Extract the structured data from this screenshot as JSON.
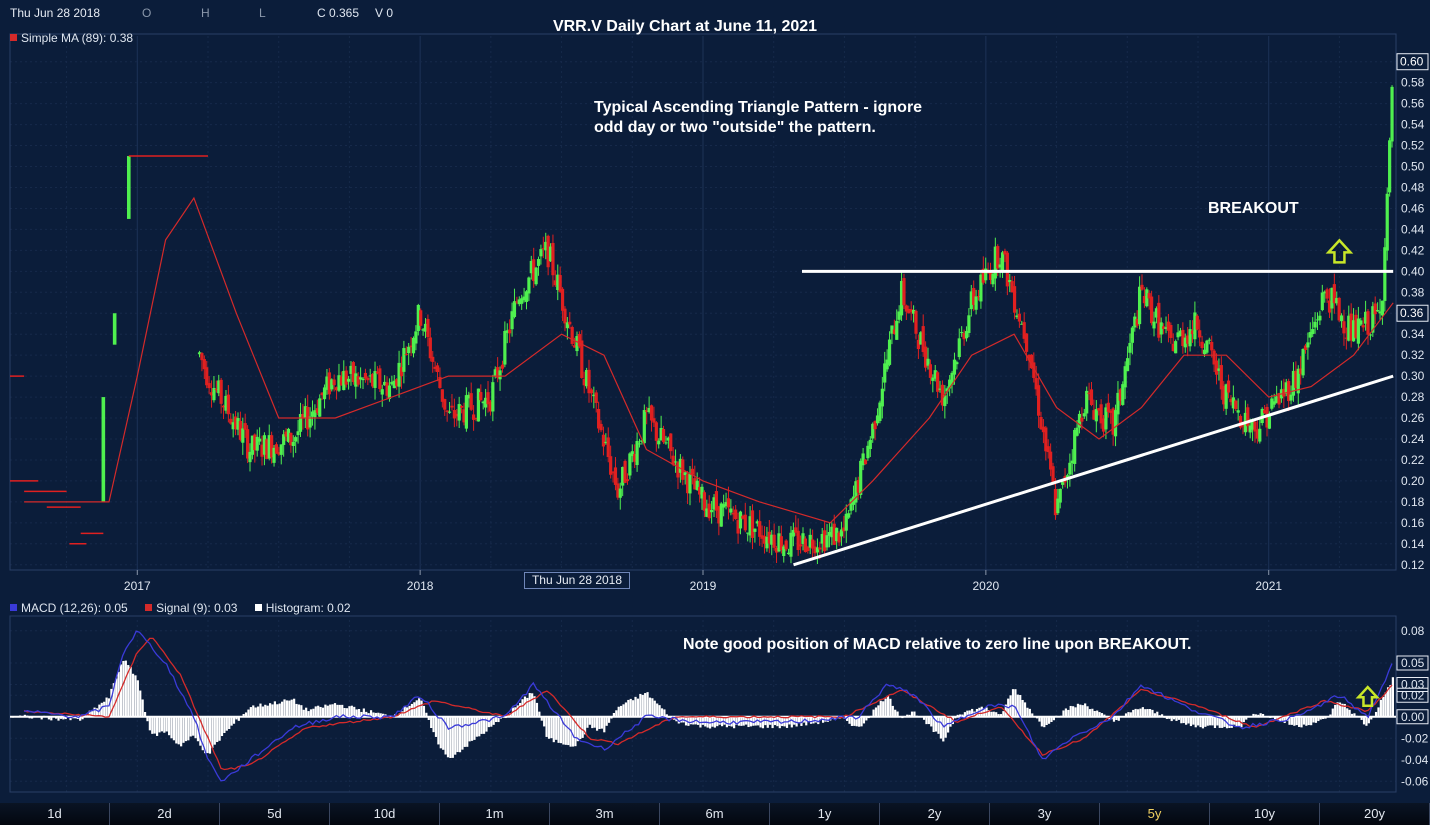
{
  "header": {
    "date": "Thu Jun 28 2018",
    "o_label": "O",
    "h_label": "H",
    "l_label": "L",
    "c_label": "C 0.365",
    "v_label": "V 0",
    "ma_legend": "Simple MA (89): 0.38",
    "ma_color": "#d42a2a"
  },
  "annotations": {
    "title": "VRR.V Daily Chart at June 11, 2021",
    "pattern_note": "Typical Ascending Triangle Pattern - ignore odd day or two \"outside\" the pattern.",
    "breakout_label": "BREAKOUT",
    "macd_note": "Note good position of MACD relative to zero line upon BREAKOUT.",
    "crosshair_date": "Thu Jun 28 2018"
  },
  "macd_legend": {
    "macd": "MACD (12,26): 0.05",
    "signal": "Signal (9): 0.03",
    "histogram": "Histogram: 0.02",
    "macd_color": "#3a3ad8",
    "signal_color": "#d42a2a",
    "histogram_color": "#ffffff"
  },
  "range_buttons": [
    {
      "label": "1d"
    },
    {
      "label": "2d"
    },
    {
      "label": "5d"
    },
    {
      "label": "10d"
    },
    {
      "label": "1m"
    },
    {
      "label": "3m"
    },
    {
      "label": "6m"
    },
    {
      "label": "1y"
    },
    {
      "label": "2y"
    },
    {
      "label": "3y"
    },
    {
      "label": "5y",
      "active": true
    },
    {
      "label": "10y"
    },
    {
      "label": "20y"
    }
  ],
  "chart_data": [
    {
      "type": "candlestick",
      "title": "VRR.V Daily Chart at June 11, 2021",
      "x_ticks": [
        "2017",
        "2018",
        "2019",
        "2020",
        "2021"
      ],
      "y_ticks": [
        "0.12",
        "0.14",
        "0.16",
        "0.18",
        "0.20",
        "0.22",
        "0.24",
        "0.26",
        "0.28",
        "0.30",
        "0.32",
        "0.34",
        "0.36",
        "0.38",
        "0.40",
        "0.42",
        "0.44",
        "0.46",
        "0.48",
        "0.50",
        "0.52",
        "0.54",
        "0.56",
        "0.58",
        "0.60"
      ],
      "ylim": [
        0.115,
        0.615
      ],
      "last_price_label": "0.60",
      "cursor_price_label": "0.36",
      "up_color": "#4ff04f",
      "down_color": "#e02020",
      "series": [
        {
          "name": "Simple MA (89)",
          "color": "#d42a2a"
        }
      ],
      "approx_close_path": [
        {
          "x": 2016.6,
          "y": 0.19
        },
        {
          "x": 2016.85,
          "y": 0.18
        },
        {
          "x": 2016.92,
          "y": 0.36
        },
        {
          "x": 2016.95,
          "y": 0.51
        },
        {
          "x": 2017.25,
          "y": 0.3
        },
        {
          "x": 2017.4,
          "y": 0.23
        },
        {
          "x": 2017.55,
          "y": 0.24
        },
        {
          "x": 2017.7,
          "y": 0.3
        },
        {
          "x": 2017.9,
          "y": 0.29
        },
        {
          "x": 2018.0,
          "y": 0.36
        },
        {
          "x": 2018.1,
          "y": 0.26
        },
        {
          "x": 2018.25,
          "y": 0.28
        },
        {
          "x": 2018.35,
          "y": 0.38
        },
        {
          "x": 2018.45,
          "y": 0.42
        },
        {
          "x": 2018.55,
          "y": 0.33
        },
        {
          "x": 2018.7,
          "y": 0.19
        },
        {
          "x": 2018.8,
          "y": 0.26
        },
        {
          "x": 2019.0,
          "y": 0.18
        },
        {
          "x": 2019.3,
          "y": 0.14
        },
        {
          "x": 2019.5,
          "y": 0.15
        },
        {
          "x": 2019.6,
          "y": 0.25
        },
        {
          "x": 2019.7,
          "y": 0.38
        },
        {
          "x": 2019.85,
          "y": 0.28
        },
        {
          "x": 2019.95,
          "y": 0.37
        },
        {
          "x": 2020.05,
          "y": 0.42
        },
        {
          "x": 2020.15,
          "y": 0.33
        },
        {
          "x": 2020.25,
          "y": 0.17
        },
        {
          "x": 2020.35,
          "y": 0.28
        },
        {
          "x": 2020.45,
          "y": 0.25
        },
        {
          "x": 2020.55,
          "y": 0.38
        },
        {
          "x": 2020.65,
          "y": 0.33
        },
        {
          "x": 2020.75,
          "y": 0.35
        },
        {
          "x": 2020.85,
          "y": 0.28
        },
        {
          "x": 2020.95,
          "y": 0.25
        },
        {
          "x": 2021.1,
          "y": 0.3
        },
        {
          "x": 2021.2,
          "y": 0.38
        },
        {
          "x": 2021.3,
          "y": 0.34
        },
        {
          "x": 2021.4,
          "y": 0.36
        },
        {
          "x": 2021.44,
          "y": 0.6
        }
      ],
      "approx_ma_path": [
        {
          "x": 2016.6,
          "y": 0.18
        },
        {
          "x": 2016.9,
          "y": 0.18
        },
        {
          "x": 2017.0,
          "y": 0.3
        },
        {
          "x": 2017.1,
          "y": 0.43
        },
        {
          "x": 2017.2,
          "y": 0.47
        },
        {
          "x": 2017.35,
          "y": 0.36
        },
        {
          "x": 2017.5,
          "y": 0.26
        },
        {
          "x": 2017.7,
          "y": 0.26
        },
        {
          "x": 2017.9,
          "y": 0.28
        },
        {
          "x": 2018.1,
          "y": 0.3
        },
        {
          "x": 2018.3,
          "y": 0.3
        },
        {
          "x": 2018.5,
          "y": 0.34
        },
        {
          "x": 2018.65,
          "y": 0.32
        },
        {
          "x": 2018.8,
          "y": 0.23
        },
        {
          "x": 2019.0,
          "y": 0.2
        },
        {
          "x": 2019.2,
          "y": 0.18
        },
        {
          "x": 2019.45,
          "y": 0.16
        },
        {
          "x": 2019.6,
          "y": 0.2
        },
        {
          "x": 2019.8,
          "y": 0.26
        },
        {
          "x": 2019.95,
          "y": 0.32
        },
        {
          "x": 2020.1,
          "y": 0.34
        },
        {
          "x": 2020.25,
          "y": 0.27
        },
        {
          "x": 2020.4,
          "y": 0.24
        },
        {
          "x": 2020.55,
          "y": 0.27
        },
        {
          "x": 2020.7,
          "y": 0.32
        },
        {
          "x": 2020.85,
          "y": 0.32
        },
        {
          "x": 2021.0,
          "y": 0.28
        },
        {
          "x": 2021.15,
          "y": 0.29
        },
        {
          "x": 2021.3,
          "y": 0.32
        },
        {
          "x": 2021.44,
          "y": 0.37
        }
      ],
      "resistance_line": {
        "x": [
          2019.35,
          2021.44
        ],
        "y": [
          0.4,
          0.4
        ],
        "color": "#ffffff"
      },
      "support_line": {
        "x": [
          2019.32,
          2021.44
        ],
        "y": [
          0.12,
          0.3
        ],
        "color": "#ffffff"
      },
      "breakout_arrow": {
        "x": 2021.25,
        "y": 0.42,
        "color": "#c8e628"
      },
      "early_ohlc_segments": [
        {
          "x": [
            2016.55,
            2016.6
          ],
          "y": 0.3
        },
        {
          "x": [
            2016.55,
            2016.65
          ],
          "y": 0.2
        },
        {
          "x": [
            2016.6,
            2016.75
          ],
          "y": 0.19
        },
        {
          "x": [
            2016.68,
            2016.8
          ],
          "y": 0.175
        },
        {
          "x": [
            2016.76,
            2016.82
          ],
          "y": 0.14
        },
        {
          "x": [
            2016.8,
            2016.88
          ],
          "y": 0.15
        },
        {
          "x": [
            2016.97,
            2017.25
          ],
          "y": 0.51
        }
      ]
    },
    {
      "type": "line",
      "title": "MACD (12,26)",
      "x_ticks": [
        "2017",
        "2018",
        "2019",
        "2020",
        "2021"
      ],
      "y_ticks": [
        "0.08",
        "0.05",
        "0.03",
        "0.02",
        "0.00",
        "-0.02",
        "-0.04",
        "-0.06"
      ],
      "ylim": [
        -0.07,
        0.09
      ],
      "series": [
        {
          "name": "MACD (12,26)",
          "color": "#3a3ad8"
        },
        {
          "name": "Signal (9)",
          "color": "#d42a2a"
        },
        {
          "name": "Histogram",
          "color": "#ffffff"
        }
      ],
      "approx_macd_path": [
        {
          "x": 2016.6,
          "y": 0.005
        },
        {
          "x": 2016.8,
          "y": 0.0
        },
        {
          "x": 2016.9,
          "y": 0.01
        },
        {
          "x": 2016.95,
          "y": 0.06
        },
        {
          "x": 2017.0,
          "y": 0.08
        },
        {
          "x": 2017.1,
          "y": 0.05
        },
        {
          "x": 2017.2,
          "y": 0.0
        },
        {
          "x": 2017.25,
          "y": -0.04
        },
        {
          "x": 2017.3,
          "y": -0.06
        },
        {
          "x": 2017.4,
          "y": -0.04
        },
        {
          "x": 2017.55,
          "y": -0.01
        },
        {
          "x": 2017.7,
          "y": 0.0
        },
        {
          "x": 2017.9,
          "y": 0.0
        },
        {
          "x": 2018.0,
          "y": 0.02
        },
        {
          "x": 2018.1,
          "y": -0.01
        },
        {
          "x": 2018.3,
          "y": 0.0
        },
        {
          "x": 2018.4,
          "y": 0.03
        },
        {
          "x": 2018.55,
          "y": -0.02
        },
        {
          "x": 2018.65,
          "y": -0.03
        },
        {
          "x": 2018.8,
          "y": 0.0
        },
        {
          "x": 2019.0,
          "y": -0.005
        },
        {
          "x": 2019.3,
          "y": -0.005
        },
        {
          "x": 2019.55,
          "y": 0.0
        },
        {
          "x": 2019.65,
          "y": 0.03
        },
        {
          "x": 2019.75,
          "y": 0.02
        },
        {
          "x": 2019.85,
          "y": -0.01
        },
        {
          "x": 2020.0,
          "y": 0.01
        },
        {
          "x": 2020.1,
          "y": 0.01
        },
        {
          "x": 2020.2,
          "y": -0.04
        },
        {
          "x": 2020.3,
          "y": -0.02
        },
        {
          "x": 2020.45,
          "y": 0.0
        },
        {
          "x": 2020.55,
          "y": 0.03
        },
        {
          "x": 2020.7,
          "y": 0.01
        },
        {
          "x": 2020.9,
          "y": -0.01
        },
        {
          "x": 2021.1,
          "y": 0.0
        },
        {
          "x": 2021.25,
          "y": 0.02
        },
        {
          "x": 2021.35,
          "y": 0.0
        },
        {
          "x": 2021.44,
          "y": 0.05
        }
      ],
      "approx_signal_path": [
        {
          "x": 2016.6,
          "y": 0.005
        },
        {
          "x": 2016.9,
          "y": 0.0
        },
        {
          "x": 2017.0,
          "y": 0.06
        },
        {
          "x": 2017.05,
          "y": 0.075
        },
        {
          "x": 2017.15,
          "y": 0.04
        },
        {
          "x": 2017.3,
          "y": -0.05
        },
        {
          "x": 2017.4,
          "y": -0.045
        },
        {
          "x": 2017.6,
          "y": -0.01
        },
        {
          "x": 2017.9,
          "y": 0.0
        },
        {
          "x": 2018.05,
          "y": 0.015
        },
        {
          "x": 2018.3,
          "y": 0.0
        },
        {
          "x": 2018.45,
          "y": 0.025
        },
        {
          "x": 2018.6,
          "y": -0.02
        },
        {
          "x": 2018.7,
          "y": -0.025
        },
        {
          "x": 2018.9,
          "y": 0.0
        },
        {
          "x": 2019.5,
          "y": 0.0
        },
        {
          "x": 2019.7,
          "y": 0.025
        },
        {
          "x": 2019.9,
          "y": -0.005
        },
        {
          "x": 2020.05,
          "y": 0.01
        },
        {
          "x": 2020.2,
          "y": -0.035
        },
        {
          "x": 2020.35,
          "y": -0.02
        },
        {
          "x": 2020.55,
          "y": 0.025
        },
        {
          "x": 2020.75,
          "y": 0.01
        },
        {
          "x": 2020.95,
          "y": -0.01
        },
        {
          "x": 2021.2,
          "y": 0.015
        },
        {
          "x": 2021.35,
          "y": 0.005
        },
        {
          "x": 2021.44,
          "y": 0.03
        }
      ],
      "breakout_arrow": {
        "x": 2021.35,
        "y": 0.02,
        "color": "#c8e628"
      }
    }
  ]
}
